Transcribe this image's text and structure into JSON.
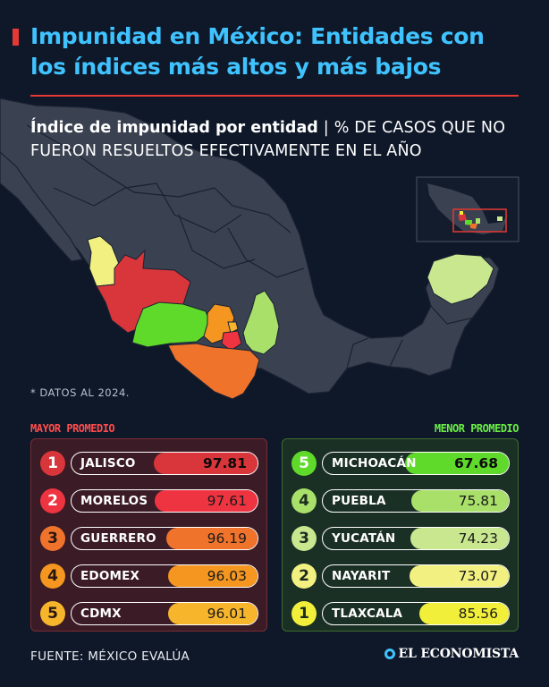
{
  "header": {
    "title": "Impunidad en México: Entidades con los índices más altos y más bajos",
    "subtitle_strong": "Índice de impunidad por entidad",
    "subtitle_separator": "|",
    "subtitle_light": "% DE CASOS QUE NO FUERON RESUELTOS EFECTIVAMENTE EN EL AÑO"
  },
  "footnote": "* DATOS AL 2024.",
  "colors": {
    "background": "#0f1829",
    "title": "#3fc3ff",
    "accent_red": "#e53935",
    "map_land": "#3a4150",
    "map_border": "#1a2232",
    "rank_high": [
      "#d8363a",
      "#ee3440",
      "#f0732c",
      "#f4961f",
      "#f7b52c"
    ],
    "rank_low": [
      "#5fda2a",
      "#a9e06a",
      "#c8e78f",
      "#f2f080",
      "#f2ef3a"
    ]
  },
  "chart_data": [
    {
      "type": "table",
      "title": "MAYOR PROMEDIO",
      "series": [
        {
          "rank": "1",
          "state": "JALISCO",
          "value": 97.81
        },
        {
          "rank": "2",
          "state": "MORELOS",
          "value": 97.61
        },
        {
          "rank": "3",
          "state": "GUERRERO",
          "value": 96.19
        },
        {
          "rank": "4",
          "state": "EDOMEX",
          "value": 96.03
        },
        {
          "rank": "5",
          "state": "CDMX",
          "value": 96.01
        }
      ]
    },
    {
      "type": "table",
      "title": "MENOR PROMEDIO",
      "series": [
        {
          "rank": "5",
          "state": "MICHOACÁN",
          "value": 67.68
        },
        {
          "rank": "4",
          "state": "PUEBLA",
          "value": 75.81
        },
        {
          "rank": "3",
          "state": "YUCATÁN",
          "value": 74.23
        },
        {
          "rank": "2",
          "state": "NAYARIT",
          "value": 73.07
        },
        {
          "rank": "1",
          "state": "TLAXCALA",
          "value": 85.56
        }
      ]
    }
  ],
  "footer": {
    "source": "FUENTE: MÉXICO EVALÚA",
    "brand": "EL ECONOMISTA",
    "brand_icon": "el-economista-logo-icon"
  }
}
